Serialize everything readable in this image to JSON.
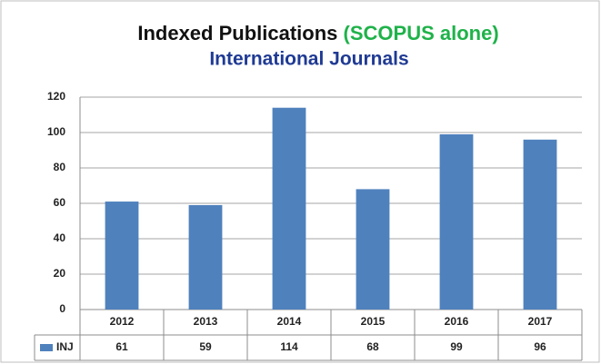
{
  "chart_data": {
    "type": "bar",
    "title": "Indexed Publications",
    "title_highlight": "(SCOPUS alone)",
    "subtitle": "International Journals",
    "categories": [
      "2012",
      "2013",
      "2014",
      "2015",
      "2016",
      "2017"
    ],
    "series": [
      {
        "name": "INJ",
        "color": "#4f81bd",
        "values": [
          61,
          59,
          114,
          68,
          99,
          96
        ]
      }
    ],
    "ylim": [
      0,
      120
    ],
    "yticks": [
      0,
      20,
      40,
      60,
      80,
      100,
      120
    ],
    "grid": true,
    "data_table": true
  }
}
